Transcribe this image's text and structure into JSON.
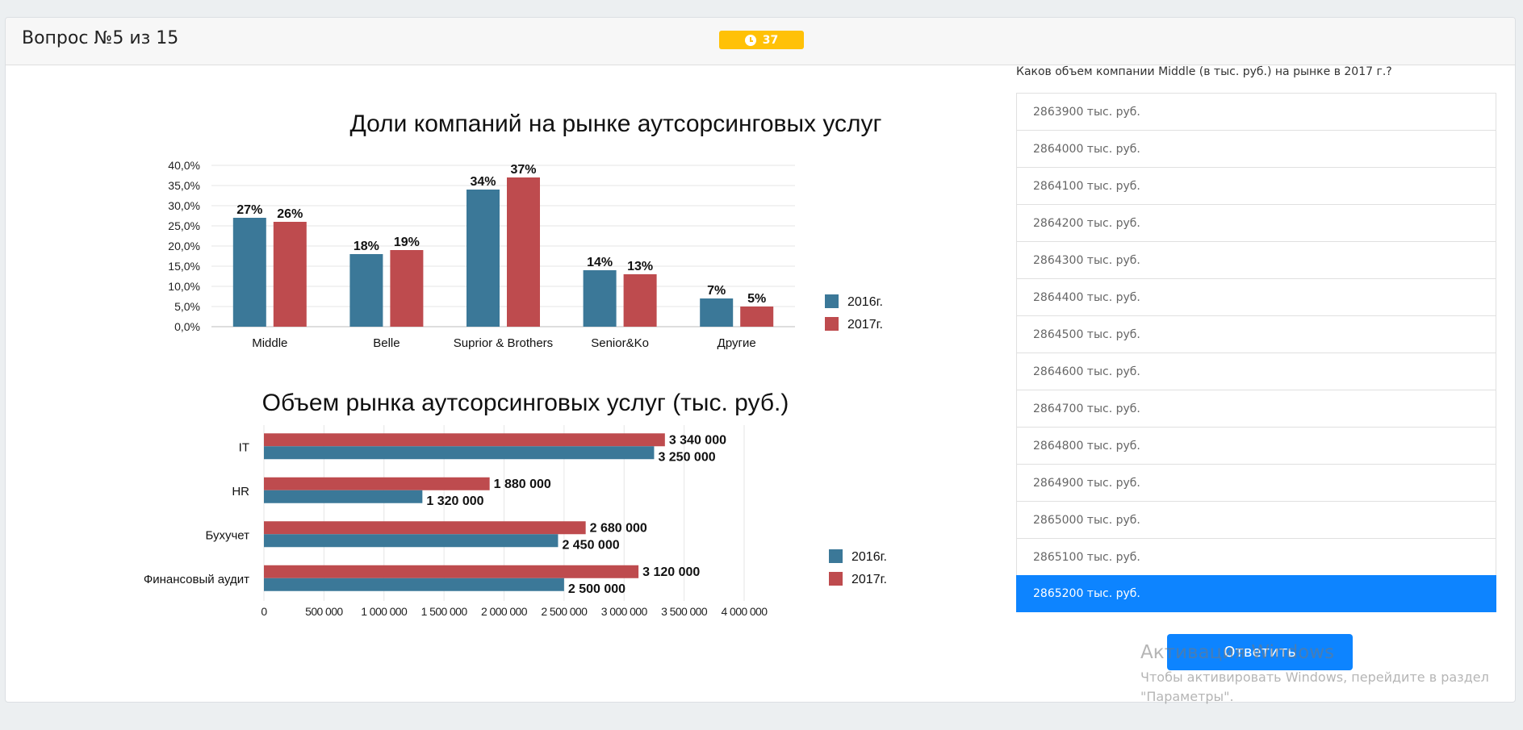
{
  "header": {
    "title": "Вопрос №5 из 15",
    "timer": "37"
  },
  "question": "Каков объем компании Middle (в тыс. руб.) на рынке в 2017 г.?",
  "options": [
    "2863900 тыс. руб.",
    "2864000 тыс. руб.",
    "2864100 тыс. руб.",
    "2864200 тыс. руб.",
    "2864300 тыс. руб.",
    "2864400 тыс. руб.",
    "2864500 тыс. руб.",
    "2864600 тыс. руб.",
    "2864700 тыс. руб.",
    "2864800 тыс. руб.",
    "2864900 тыс. руб.",
    "2865000 тыс. руб.",
    "2865100 тыс. руб.",
    "2865200 тыс. руб."
  ],
  "selected_option": 13,
  "submit_label": "Ответить",
  "watermark": {
    "title": "Активация Windows",
    "line1": "Чтобы активировать Windows, перейдите в раздел",
    "line2": "\"Параметры\"."
  },
  "colors": {
    "series2016": "#3b7898",
    "series2017": "#be4b4e",
    "accent": "#0d84ff",
    "timer": "#ffc107"
  },
  "chart_data": [
    {
      "type": "bar",
      "title": "Доли компаний на рынке аутсорсинговых услуг",
      "categories": [
        "Middle",
        "Belle",
        "Suprior & Brothers",
        "Senior&Ko",
        "Другие"
      ],
      "series": [
        {
          "name": "2016г.",
          "values": [
            27,
            18,
            34,
            14,
            7
          ],
          "labels": [
            "27%",
            "18%",
            "34%",
            "14%",
            "7%"
          ]
        },
        {
          "name": "2017г.",
          "values": [
            26,
            19,
            37,
            13,
            5
          ],
          "labels": [
            "26%",
            "19%",
            "37%",
            "13%",
            "5%"
          ]
        }
      ],
      "ylim": [
        0,
        40
      ],
      "yticks": [
        "0,0%",
        "5,0%",
        "10,0%",
        "15,0%",
        "20,0%",
        "25,0%",
        "30,0%",
        "35,0%",
        "40,0%"
      ],
      "legend": "right",
      "grid": true
    },
    {
      "type": "bar",
      "orientation": "horizontal",
      "title": "Объем рынка аутсорсинговых услуг (тыс. руб.)",
      "categories": [
        "IT",
        "HR",
        "Бухучет",
        "Финансовый аудит"
      ],
      "series": [
        {
          "name": "2016г.",
          "values": [
            3250000,
            1320000,
            2450000,
            2500000
          ],
          "labels": [
            "3 250 000",
            "1 320 000",
            "2 450 000",
            "2 500 000"
          ]
        },
        {
          "name": "2017г.",
          "values": [
            3340000,
            1880000,
            2680000,
            3120000
          ],
          "labels": [
            "3 340 000",
            "1 880 000",
            "2 680 000",
            "3 120 000"
          ]
        }
      ],
      "xlim": [
        0,
        4000000
      ],
      "xticks": [
        "0",
        "500 000",
        "1 000 000",
        "1 500 000",
        "2 000 000",
        "2 500 000",
        "3 000 000",
        "3 500 000",
        "4 000 000"
      ],
      "legend": "right",
      "grid": true
    }
  ]
}
